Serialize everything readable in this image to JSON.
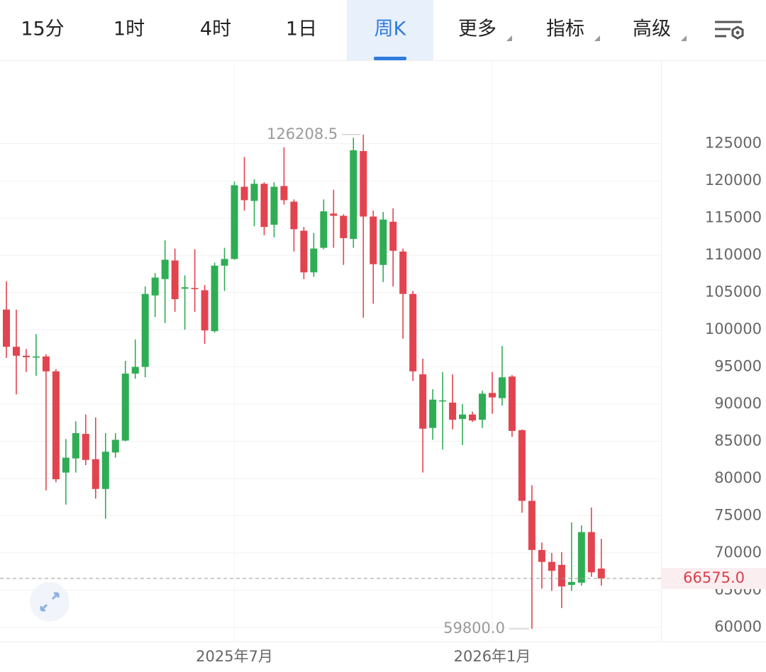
{
  "tabs": [
    "15分",
    "1时",
    "4时",
    "1日",
    "周K",
    "更多",
    "指标",
    "高级"
  ],
  "active_tab": 4,
  "chart_data": {
    "type": "candlestick",
    "categories": [
      null,
      null,
      null,
      null,
      null,
      null,
      null,
      null,
      null,
      null,
      null,
      null,
      null,
      null,
      null,
      null,
      null,
      null,
      null,
      null,
      null,
      null,
      null,
      "2025年7月",
      null,
      null,
      null,
      null,
      null,
      null,
      null,
      null,
      null,
      null,
      null,
      null,
      null,
      null,
      null,
      null,
      null,
      null,
      null,
      null,
      null,
      null,
      null,
      null,
      null,
      "2026年1月",
      null,
      null,
      null,
      null,
      null,
      null,
      null,
      null,
      null,
      null,
      null
    ],
    "open": [
      102700,
      97700,
      96500,
      96300,
      96400,
      94400,
      80800,
      82700,
      86000,
      82600,
      78600,
      83500,
      85100,
      94100,
      95000,
      104600,
      106800,
      109300,
      105500,
      105600,
      105300,
      99800,
      108600,
      109500,
      119200,
      117300,
      119600,
      114100,
      119300,
      117200,
      113300,
      107700,
      111000,
      115600,
      115300,
      112200,
      124000,
      115200,
      108700,
      114500,
      110500,
      104800,
      94000,
      86800,
      90400,
      90200,
      88000,
      88600,
      87900,
      91500,
      90800,
      93700,
      86500,
      77000,
      70400,
      68800,
      68400,
      65700,
      66000,
      72800,
      67900
    ],
    "high": [
      106500,
      102700,
      97400,
      99400,
      96700,
      94700,
      85300,
      87700,
      88600,
      88200,
      86100,
      86100,
      95800,
      98700,
      105800,
      107600,
      112000,
      110900,
      107300,
      110800,
      106000,
      109000,
      111000,
      119900,
      123200,
      120200,
      119800,
      119800,
      124500,
      117500,
      113800,
      113000,
      117500,
      118800,
      115500,
      125800,
      126208.5,
      116000,
      115800,
      116300,
      110900,
      105200,
      96100,
      92000,
      94300,
      94000,
      90000,
      89000,
      91800,
      94300,
      97800,
      93900,
      86600,
      79100,
      71400,
      70000,
      70100,
      74100,
      73700,
      76100,
      71900
    ],
    "low": [
      96200,
      91300,
      94300,
      93800,
      78400,
      79500,
      76500,
      80800,
      81800,
      77300,
      74600,
      82800,
      85000,
      93400,
      93600,
      101700,
      100900,
      102400,
      100000,
      102400,
      98100,
      99600,
      105200,
      109400,
      116000,
      113900,
      112700,
      112400,
      116800,
      110500,
      106800,
      107100,
      110800,
      111000,
      108700,
      111000,
      101600,
      103500,
      106400,
      105800,
      98800,
      93100,
      80800,
      85200,
      83900,
      86600,
      84500,
      87600,
      86800,
      88700,
      89800,
      85600,
      75400,
      59800,
      65200,
      64900,
      62600,
      64900,
      65600,
      66800,
      65600
    ],
    "close": [
      97700,
      96500,
      96300,
      96400,
      94400,
      79900,
      82800,
      86100,
      82500,
      78600,
      83600,
      85200,
      94100,
      95000,
      104800,
      107000,
      109400,
      104100,
      105700,
      105500,
      99900,
      108600,
      109500,
      119400,
      117400,
      119600,
      113800,
      119200,
      117400,
      113500,
      107700,
      110900,
      115900,
      115300,
      112300,
      124100,
      115200,
      108800,
      114800,
      110600,
      104800,
      94400,
      86700,
      90600,
      90500,
      87900,
      88600,
      87800,
      91400,
      90900,
      93600,
      86400,
      77000,
      70400,
      68800,
      67600,
      65500,
      66100,
      72800,
      67400,
      66575
    ],
    "up_color": "#2fad55",
    "down_color": "#e2444f",
    "ylim": [
      58100,
      136200
    ],
    "yticks": [
      60000,
      65000,
      70000,
      75000,
      80000,
      85000,
      90000,
      95000,
      100000,
      105000,
      110000,
      115000,
      120000,
      125000
    ],
    "grid": true,
    "high_annotation": 126208.5,
    "low_annotation": {
      "value": 59800,
      "label": "59800.0"
    },
    "last_price": {
      "value": 66575,
      "label": "66575.0"
    }
  }
}
